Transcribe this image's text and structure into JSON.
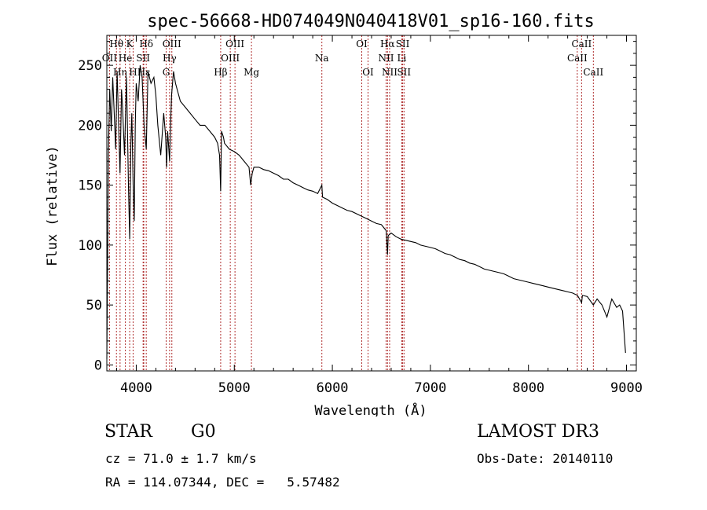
{
  "chart_data": {
    "type": "line",
    "title": "spec-56668-HD074049N040418V01_sp16-160.fits",
    "xlabel": "Wavelength (Å)",
    "ylabel": "Flux (relative)",
    "xlim": [
      3700,
      9100
    ],
    "ylim": [
      -5,
      275
    ],
    "xticks": [
      4000,
      5000,
      6000,
      7000,
      8000,
      9000
    ],
    "yticks": [
      0,
      50,
      100,
      150,
      200,
      250
    ],
    "series": [
      {
        "name": "flux",
        "x": [
          3700,
          3715,
          3730,
          3745,
          3760,
          3775,
          3790,
          3805,
          3820,
          3835,
          3850,
          3860,
          3880,
          3900,
          3910,
          3920,
          3933,
          3945,
          3955,
          3968,
          3980,
          3990,
          4000,
          4020,
          4040,
          4060,
          4080,
          4102,
          4120,
          4150,
          4180,
          4200,
          4220,
          4250,
          4280,
          4300,
          4310,
          4320,
          4340,
          4350,
          4360,
          4380,
          4400,
          4450,
          4500,
          4550,
          4600,
          4650,
          4700,
          4750,
          4800,
          4830,
          4850,
          4861,
          4870,
          4890,
          4900,
          4950,
          5000,
          5050,
          5100,
          5150,
          5167,
          5183,
          5200,
          5250,
          5300,
          5350,
          5400,
          5450,
          5500,
          5550,
          5600,
          5650,
          5700,
          5750,
          5800,
          5850,
          5893,
          5900,
          5950,
          6000,
          6050,
          6100,
          6150,
          6200,
          6250,
          6300,
          6350,
          6400,
          6450,
          6500,
          6550,
          6563,
          6570,
          6600,
          6650,
          6700,
          6750,
          6800,
          6850,
          6900,
          6950,
          7000,
          7050,
          7100,
          7150,
          7200,
          7250,
          7300,
          7350,
          7400,
          7450,
          7500,
          7550,
          7600,
          7650,
          7700,
          7750,
          7800,
          7850,
          7900,
          7950,
          8000,
          8050,
          8100,
          8150,
          8200,
          8250,
          8300,
          8350,
          8400,
          8450,
          8500,
          8542,
          8550,
          8600,
          8662,
          8700,
          8750,
          8800,
          8850,
          8900,
          8930,
          8960,
          8990
        ],
        "y": [
          5,
          175,
          230,
          195,
          240,
          210,
          180,
          245,
          200,
          160,
          230,
          215,
          175,
          240,
          200,
          150,
          105,
          185,
          210,
          150,
          120,
          200,
          235,
          220,
          250,
          240,
          200,
          180,
          245,
          235,
          240,
          225,
          200,
          175,
          210,
          190,
          165,
          195,
          170,
          200,
          225,
          245,
          235,
          220,
          215,
          210,
          205,
          200,
          200,
          195,
          190,
          185,
          175,
          145,
          195,
          190,
          185,
          180,
          178,
          175,
          170,
          165,
          150,
          160,
          165,
          165,
          163,
          162,
          160,
          158,
          155,
          155,
          152,
          150,
          148,
          146,
          145,
          143,
          150,
          140,
          138,
          135,
          133,
          131,
          129,
          128,
          126,
          124,
          122,
          120,
          118,
          117,
          112,
          92,
          108,
          110,
          107,
          105,
          104,
          103,
          102,
          100,
          99,
          98,
          97,
          95,
          93,
          92,
          90,
          88,
          87,
          85,
          84,
          82,
          80,
          79,
          78,
          77,
          76,
          74,
          72,
          71,
          70,
          69,
          68,
          67,
          66,
          65,
          64,
          63,
          62,
          61,
          60,
          58,
          52,
          58,
          57,
          50,
          55,
          50,
          40,
          55,
          48,
          50,
          45,
          10
        ]
      }
    ],
    "lines": [
      {
        "name": "Hθ",
        "wl": 3798,
        "row": 1
      },
      {
        "name": "OII",
        "wl": 3727,
        "row": 2
      },
      {
        "name": "Hη",
        "wl": 3835,
        "row": 3
      },
      {
        "name": "K",
        "wl": 3933,
        "row": 1
      },
      {
        "name": "He",
        "wl": 3889,
        "row": 2
      },
      {
        "name": "H",
        "wl": 3968,
        "row": 3
      },
      {
        "name": "Hδ",
        "wl": 4102,
        "row": 1
      },
      {
        "name": "SII",
        "wl": 4070,
        "row": 2
      },
      {
        "name": "Hε",
        "wl": 4077,
        "row": 3
      },
      {
        "name": "OIII",
        "wl": 4363,
        "row": 1
      },
      {
        "name": "Hγ",
        "wl": 4340,
        "row": 2
      },
      {
        "name": "G",
        "wl": 4305,
        "row": 3
      },
      {
        "name": "Hβ",
        "wl": 4861,
        "row": 3
      },
      {
        "name": "OIII",
        "wl": 5007,
        "row": 1
      },
      {
        "name": "OIII",
        "wl": 4959,
        "row": 2
      },
      {
        "name": "Mg",
        "wl": 5175,
        "row": 3
      },
      {
        "name": "Na",
        "wl": 5893,
        "row": 2
      },
      {
        "name": "OI",
        "wl": 6300,
        "row": 1
      },
      {
        "name": "OI",
        "wl": 6364,
        "row": 3
      },
      {
        "name": "Hα",
        "wl": 6563,
        "row": 1
      },
      {
        "name": "NII",
        "wl": 6548,
        "row": 2
      },
      {
        "name": "NII",
        "wl": 6584,
        "row": 3
      },
      {
        "name": "SII",
        "wl": 6717,
        "row": 1
      },
      {
        "name": "Li",
        "wl": 6708,
        "row": 2
      },
      {
        "name": "SII",
        "wl": 6731,
        "row": 3
      },
      {
        "name": "CaII",
        "wl": 8542,
        "row": 1
      },
      {
        "name": "CaII",
        "wl": 8498,
        "row": 2
      },
      {
        "name": "CaII",
        "wl": 8662,
        "row": 3
      }
    ]
  },
  "info": {
    "object_type": "STAR",
    "object_class": "G0",
    "survey": "LAMOST DR3",
    "cz": "cz = 71.0 ± 1.7 km/s",
    "obs_date": "Obs-Date: 20140110",
    "radec": "RA = 114.07344, DEC =   5.57482"
  },
  "colors": {
    "axis": "#000000",
    "spectrum": "#000000",
    "line_marker": "#b03030"
  }
}
